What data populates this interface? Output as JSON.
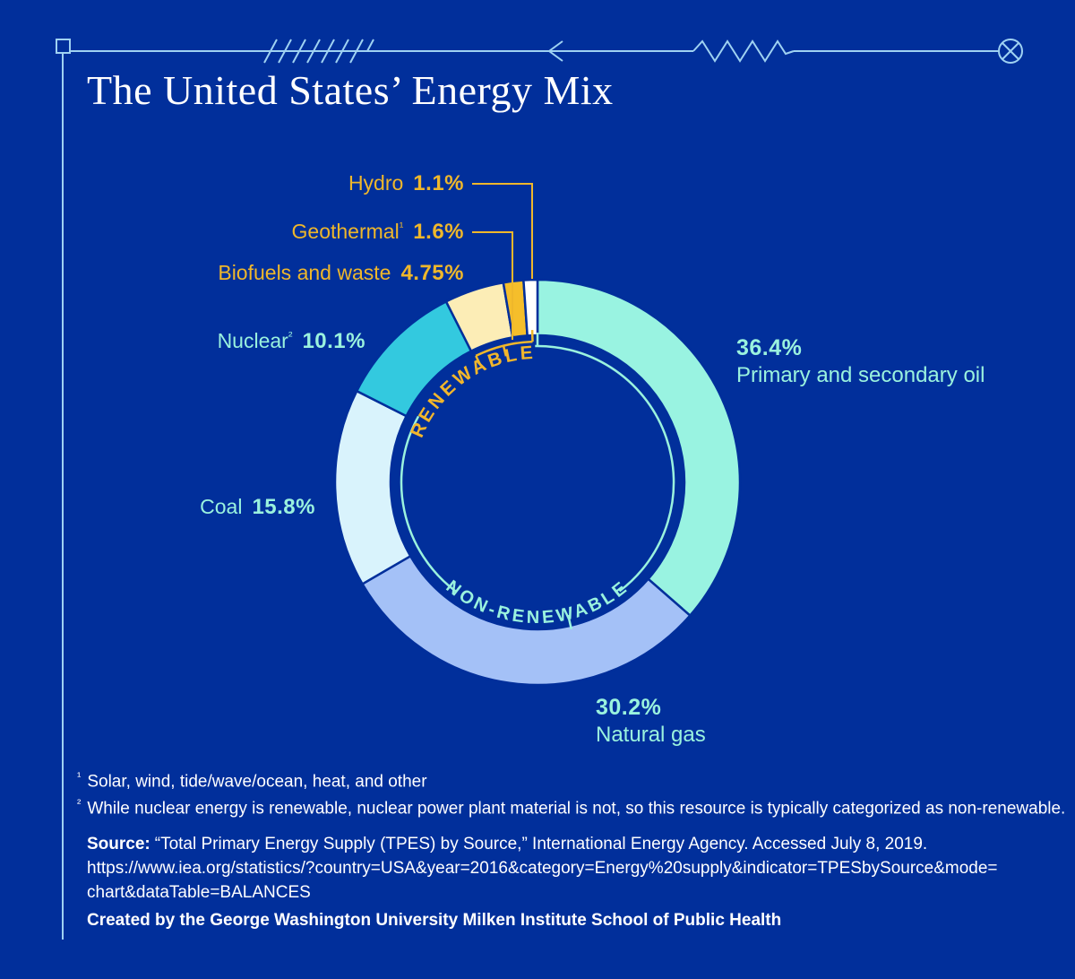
{
  "page": {
    "background": "#012F9B",
    "border_color": "#9FD2F2",
    "title": "The United States’ Energy Mix",
    "title_color": "#FFFFFF"
  },
  "chart_data": {
    "type": "pie",
    "title": "The United States’ Energy Mix",
    "legend_position": "callout-labels",
    "donut": true,
    "callout_colors": {
      "renewable": "#EFB72B",
      "non_renewable": "#9AF2DE"
    },
    "ring_labels": {
      "renewable": "RENEWABLE",
      "non_renewable": "NON-RENEWABLE",
      "renewable_color": "#F2B62B",
      "non_renewable_color": "#9AF2DE"
    },
    "segments": [
      {
        "id": "oil",
        "label": "Primary and secondary oil",
        "value": 36.4,
        "display": "36.4%",
        "color": "#99F3E1",
        "category": "non-renewable"
      },
      {
        "id": "natural-gas",
        "label": "Natural gas",
        "value": 30.2,
        "display": "30.2%",
        "color": "#A4C1F7",
        "category": "non-renewable"
      },
      {
        "id": "coal",
        "label": "Coal",
        "value": 15.8,
        "display": "15.8%",
        "color": "#D9F3FC",
        "category": "non-renewable"
      },
      {
        "id": "nuclear",
        "label": "Nuclear",
        "sup": "²",
        "value": 10.1,
        "display": "10.1%",
        "color": "#33C9DF",
        "category": "non-renewable"
      },
      {
        "id": "biofuels",
        "label": "Biofuels and waste",
        "value": 4.75,
        "display": "4.75%",
        "color": "#FCEDB6",
        "category": "renewable"
      },
      {
        "id": "geothermal",
        "label": "Geothermal",
        "sup": "¹",
        "value": 1.6,
        "display": "1.6%",
        "color": "#F5BE2B",
        "category": "renewable"
      },
      {
        "id": "hydro",
        "label": "Hydro",
        "value": 1.1,
        "display": "1.1%",
        "color": "#FFFFFF",
        "category": "renewable"
      }
    ]
  },
  "footnotes": [
    {
      "marker": "¹",
      "text": "Solar, wind, tide/wave/ocean, heat, and other"
    },
    {
      "marker": "²",
      "text": "While nuclear energy is renewable, nuclear power plant material is not, so this resource is typically categorized as non-renewable."
    }
  ],
  "source": {
    "label": "Source:",
    "text": "“Total Primary Energy Supply (TPES) by Source,” International Energy Agency. Accessed July 8, 2019.",
    "url": "https://www.iea.org/statistics/?country=USA&year=2016&category=Energy%20supply&indicator=TPESbySource&mode=chart&dataTable=BALANCES"
  },
  "credit": "Created by the George Washington University Milken Institute School of Public Health"
}
